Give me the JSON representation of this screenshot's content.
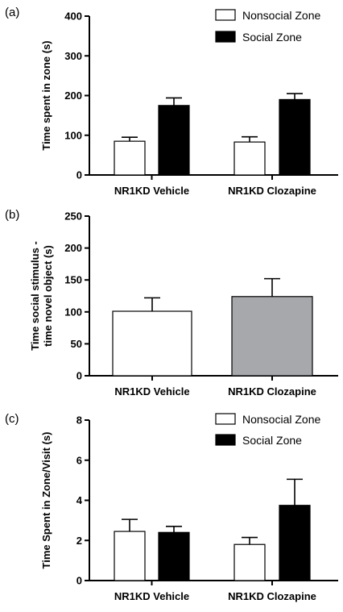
{
  "chart_data": [
    {
      "panel_label": "(a)",
      "type": "bar",
      "ylabel": "Time spent in zone (s)",
      "ylim": [
        0,
        400
      ],
      "yticks": [
        0,
        100,
        200,
        300,
        400
      ],
      "categories": [
        "NR1KD Vehicle",
        "NR1KD Clozapine"
      ],
      "legend_position": "top-right",
      "series": [
        {
          "name": "Nonsocial Zone",
          "color": "#ffffff",
          "values": [
            85,
            83
          ],
          "errors": [
            10,
            13
          ]
        },
        {
          "name": "Social Zone",
          "color": "#000000",
          "values": [
            175,
            190
          ],
          "errors": [
            19,
            15
          ]
        }
      ]
    },
    {
      "panel_label": "(b)",
      "type": "bar",
      "ylabel": [
        "Time social stimulus -",
        "time novel object (s)"
      ],
      "ylim": [
        0,
        250
      ],
      "yticks": [
        0,
        50,
        100,
        150,
        200,
        250
      ],
      "categories": [
        "NR1KD Vehicle",
        "NR1KD Clozapine"
      ],
      "series": [
        {
          "values": [
            101,
            124
          ],
          "errors": [
            21,
            28
          ],
          "colors": [
            "#ffffff",
            "#a7a8ab"
          ]
        }
      ]
    },
    {
      "panel_label": "(c)",
      "type": "bar",
      "ylabel": "Time  Spent in Zone/Visit (s)",
      "ylim": [
        0,
        8
      ],
      "yticks": [
        0,
        2,
        4,
        6,
        8
      ],
      "categories": [
        "NR1KD Vehicle",
        "NR1KD Clozapine"
      ],
      "legend_position": "top-right",
      "series": [
        {
          "name": "Nonsocial Zone",
          "color": "#ffffff",
          "values": [
            2.45,
            1.8
          ],
          "errors": [
            0.6,
            0.35
          ]
        },
        {
          "name": "Social Zone",
          "color": "#000000",
          "values": [
            2.4,
            3.75
          ],
          "errors": [
            0.3,
            1.3
          ]
        }
      ]
    }
  ]
}
